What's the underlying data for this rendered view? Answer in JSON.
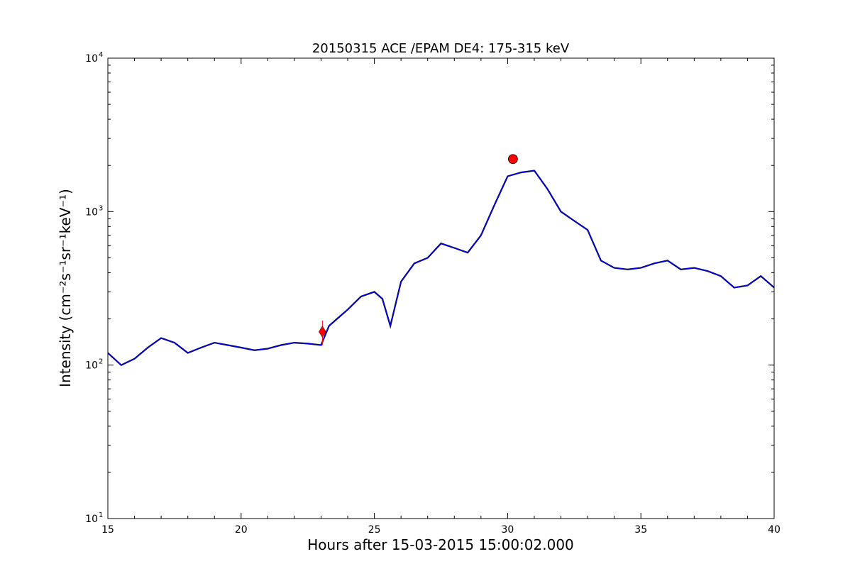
{
  "chart_data": {
    "type": "line",
    "title": "20150315 ACE /EPAM DE4: 175-315 keV",
    "xlabel": "Hours after 15-03-2015 15:00:02.000",
    "ylabel": "Intensity (cm⁻²s⁻¹sr⁻¹keV⁻¹)",
    "xlim": [
      15,
      40
    ],
    "ylim": [
      10,
      10000
    ],
    "yscale": "log",
    "grid": false,
    "xticks": [
      15,
      20,
      25,
      30,
      35,
      40
    ],
    "xtick_labels": [
      "15",
      "20",
      "25",
      "30",
      "35",
      "40"
    ],
    "yticks": [
      10,
      100,
      1000,
      10000
    ],
    "ytick_labels": [
      "10",
      "10",
      "10",
      "10"
    ],
    "ytick_exponents": [
      "1",
      "2",
      "3",
      "4"
    ],
    "series": [
      {
        "color": "#000000",
        "x": [
          15.0,
          15.5,
          16.0,
          16.5,
          17.0,
          17.5,
          18.0,
          18.5,
          19.0,
          19.5,
          20.0,
          20.5,
          21.0,
          21.5,
          22.0,
          22.5,
          23.0,
          23.3,
          23.6,
          24.0,
          24.5,
          25.0,
          25.3,
          25.6,
          26.0,
          26.5,
          27.0,
          27.5,
          28.0,
          28.5,
          29.0,
          29.5,
          30.0,
          30.5,
          31.0,
          31.5,
          32.0,
          32.5,
          33.0,
          33.5,
          34.0,
          34.5,
          35.0,
          35.5,
          36.0,
          36.5,
          37.0,
          37.5,
          38.0,
          38.5,
          39.0,
          39.5,
          40.0
        ],
        "y": [
          120,
          100,
          110,
          130,
          150,
          140,
          120,
          130,
          140,
          135,
          130,
          125,
          128,
          135,
          140,
          138,
          135,
          180,
          200,
          230,
          280,
          300,
          270,
          180,
          350,
          460,
          500,
          620,
          580,
          540,
          700,
          1100,
          1700,
          1800,
          1850,
          1400,
          1000,
          870,
          760,
          480,
          430,
          420,
          430,
          460,
          480,
          420,
          430,
          410,
          380,
          320,
          330,
          380,
          320
        ]
      },
      {
        "color": "#0000ff",
        "x": [
          15.0,
          15.5,
          16.0,
          16.5,
          17.0,
          17.5,
          18.0,
          18.5,
          19.0,
          19.5,
          20.0,
          20.5,
          21.0,
          21.5,
          22.0,
          22.5,
          23.0,
          23.3,
          23.6,
          24.0,
          24.5,
          25.0,
          25.3,
          25.6,
          26.0,
          26.5,
          27.0,
          27.5,
          28.0,
          28.5,
          29.0,
          29.5,
          30.0,
          30.5,
          31.0,
          31.5,
          32.0,
          32.5,
          33.0,
          33.5,
          34.0,
          34.5,
          35.0,
          35.5,
          36.0,
          36.5,
          37.0,
          37.5,
          38.0,
          38.5,
          39.0,
          39.5,
          40.0
        ],
        "y": [
          120,
          100,
          110,
          130,
          150,
          140,
          120,
          130,
          140,
          135,
          130,
          125,
          128,
          135,
          140,
          138,
          135,
          180,
          200,
          230,
          280,
          300,
          270,
          180,
          350,
          460,
          500,
          620,
          580,
          540,
          700,
          1100,
          1700,
          1800,
          1850,
          1400,
          1000,
          870,
          760,
          480,
          430,
          420,
          430,
          460,
          480,
          420,
          430,
          410,
          380,
          320,
          330,
          380,
          320
        ]
      }
    ],
    "markers": [
      {
        "shape": "circle",
        "color": "#ff0000",
        "x": 30.2,
        "y": 2200
      },
      {
        "shape": "diamond",
        "color": "#ff0000",
        "x": 23.05,
        "y": 165,
        "yerr": [
          135,
          195
        ]
      }
    ]
  }
}
